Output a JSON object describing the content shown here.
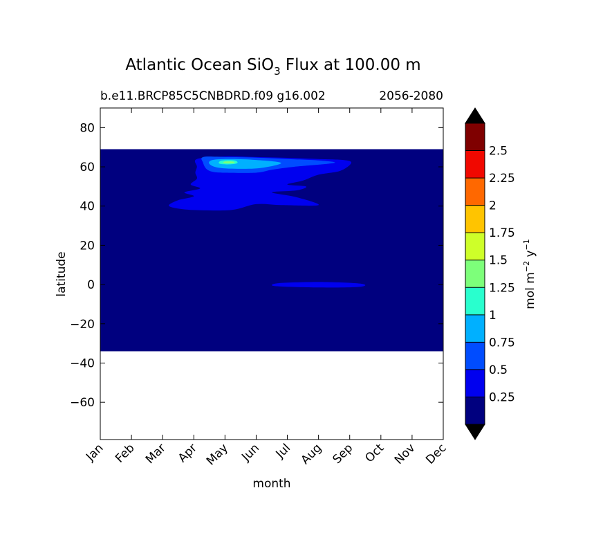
{
  "chart_data": {
    "type": "contour",
    "title_prefix": "Atlantic Ocean SiO",
    "title_subscript": "3",
    "title_suffix": " Flux at 100.00 m",
    "subtitle_left": "b.e11.BRCP85C5CNBDRD.f09 g16.002",
    "subtitle_right": "2056-2080",
    "xlabel": "month",
    "ylabel": "latitude",
    "colorbar_label": {
      "main": "mol m",
      "exp1": "−2",
      "mid": " y",
      "exp2": "−1"
    },
    "x_ticks": [
      "Jan",
      "Feb",
      "Mar",
      "Apr",
      "May",
      "Jun",
      "Jul",
      "Aug",
      "Sep",
      "Oct",
      "Nov",
      "Dec"
    ],
    "xlim": [
      0,
      11
    ],
    "y_ticks": [
      80,
      60,
      40,
      20,
      0,
      -20,
      -40,
      -60
    ],
    "y_tick_labels": [
      "80",
      "60",
      "40",
      "20",
      "0",
      "−20",
      "−40",
      "−60"
    ],
    "ylim": [
      -79,
      90
    ],
    "data_lat_range": [
      -34,
      69
    ],
    "colorbar_levels": [
      0,
      0.25,
      0.5,
      0.75,
      1.0,
      1.25,
      1.5,
      1.75,
      2.0,
      2.25,
      2.5,
      2.75
    ],
    "colorbar_tick_labels": [
      "0.25",
      "0.5",
      "0.75",
      "1",
      "1.25",
      "1.5",
      "1.75",
      "2",
      "2.25",
      "2.5"
    ],
    "colorbar_extend": "both",
    "colors": [
      "#00007f",
      "#0000ef",
      "#004cff",
      "#00b0ff",
      "#29ffce",
      "#7dff7a",
      "#ceff29",
      "#ffc400",
      "#ff6800",
      "#f10800",
      "#7f0000"
    ],
    "extend_colors": {
      "under": "#000000",
      "over": "#000000"
    },
    "background_level": 0,
    "features": [
      {
        "name": "north-atlantic-bloom-outer",
        "level": 1,
        "outline": [
          [
            2.2,
            40.5
          ],
          [
            2.5,
            43
          ],
          [
            3.0,
            45
          ],
          [
            2.7,
            47
          ],
          [
            3.2,
            49
          ],
          [
            2.9,
            51
          ],
          [
            3.1,
            54
          ],
          [
            3.05,
            57
          ],
          [
            3.1,
            60
          ],
          [
            3.1,
            64
          ],
          [
            4,
            65.3
          ],
          [
            5,
            65
          ],
          [
            6,
            64.6
          ],
          [
            7,
            64
          ],
          [
            7.8,
            63.5
          ],
          [
            8.05,
            62
          ],
          [
            7.7,
            58
          ],
          [
            7,
            56
          ],
          [
            6.5,
            53
          ],
          [
            6,
            51
          ],
          [
            6.6,
            50
          ],
          [
            6.3,
            48
          ],
          [
            5.5,
            47
          ],
          [
            6.3,
            44.5
          ],
          [
            7,
            40.5
          ],
          [
            5.8,
            40.5
          ],
          [
            5,
            41
          ],
          [
            4.2,
            38
          ],
          [
            3,
            38
          ],
          [
            2.4,
            39
          ]
        ]
      },
      {
        "name": "north-atlantic-bloom-mid",
        "level": 2,
        "outline": [
          [
            3.4,
            59
          ],
          [
            3.3,
            62
          ],
          [
            3.3,
            65
          ],
          [
            4,
            65
          ],
          [
            5,
            64.7
          ],
          [
            6,
            64
          ],
          [
            7,
            63.3
          ],
          [
            7.5,
            62
          ],
          [
            6.2,
            60
          ],
          [
            5.5,
            58.5
          ],
          [
            5,
            57
          ],
          [
            4,
            57
          ],
          [
            3.6,
            57.5
          ]
        ]
      },
      {
        "name": "north-atlantic-bloom-inner",
        "level": 3,
        "outline": [
          [
            3.5,
            61.5
          ],
          [
            3.6,
            63.5
          ],
          [
            4.2,
            64
          ],
          [
            5,
            63.5
          ],
          [
            5.8,
            62
          ],
          [
            5.2,
            59.5
          ],
          [
            4.5,
            59
          ],
          [
            3.8,
            59.5
          ]
        ]
      },
      {
        "name": "north-atlantic-bloom-core",
        "level": 4,
        "outline": [
          [
            3.8,
            62
          ],
          [
            3.9,
            63.2
          ],
          [
            4.3,
            63.3
          ],
          [
            4.4,
            62
          ],
          [
            4.2,
            61.3
          ],
          [
            3.9,
            61.4
          ]
        ]
      },
      {
        "name": "north-atlantic-bloom-peak",
        "level": 5,
        "outline": [
          [
            3.95,
            62
          ],
          [
            4.0,
            62.7
          ],
          [
            4.25,
            62.7
          ],
          [
            4.3,
            62
          ],
          [
            4.1,
            61.7
          ]
        ]
      },
      {
        "name": "equatorial-band",
        "level": 1,
        "outline": [
          [
            5.5,
            -0.3
          ],
          [
            5.8,
            0.8
          ],
          [
            7,
            1.3
          ],
          [
            8.2,
            0.7
          ],
          [
            8.5,
            -0.3
          ],
          [
            8.2,
            -1.3
          ],
          [
            7,
            -1.5
          ],
          [
            5.8,
            -1.0
          ]
        ]
      }
    ]
  }
}
